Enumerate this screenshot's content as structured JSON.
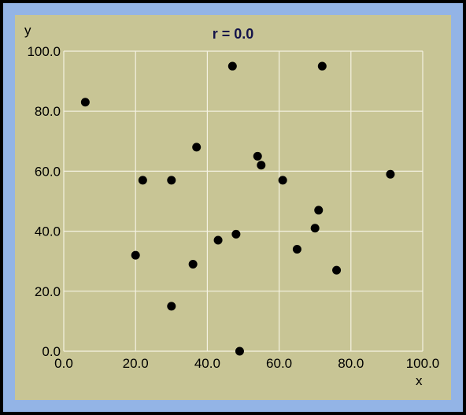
{
  "chart_data": {
    "type": "scatter",
    "title": "r = 0.0",
    "xlabel": "x",
    "ylabel": "y",
    "xlim": [
      0,
      100
    ],
    "ylim": [
      0,
      100
    ],
    "xticks": [
      "0.0",
      "20.0",
      "40.0",
      "60.0",
      "80.0",
      "100.0"
    ],
    "yticks": [
      "0.0",
      "20.0",
      "40.0",
      "60.0",
      "80.0",
      "100.0"
    ],
    "grid": true,
    "series": [
      {
        "points": [
          {
            "x": 6,
            "y": 83
          },
          {
            "x": 47,
            "y": 95
          },
          {
            "x": 72,
            "y": 95
          },
          {
            "x": 37,
            "y": 68
          },
          {
            "x": 54,
            "y": 65
          },
          {
            "x": 55,
            "y": 62
          },
          {
            "x": 22,
            "y": 57
          },
          {
            "x": 30,
            "y": 57
          },
          {
            "x": 61,
            "y": 57
          },
          {
            "x": 91,
            "y": 59
          },
          {
            "x": 71,
            "y": 47
          },
          {
            "x": 70,
            "y": 41
          },
          {
            "x": 48,
            "y": 39
          },
          {
            "x": 43,
            "y": 37
          },
          {
            "x": 65,
            "y": 34
          },
          {
            "x": 20,
            "y": 32
          },
          {
            "x": 36,
            "y": 29
          },
          {
            "x": 76,
            "y": 27
          },
          {
            "x": 30,
            "y": 15
          },
          {
            "x": 49,
            "y": 0
          }
        ]
      }
    ]
  },
  "colors": {
    "applet_border": "#93b4e6",
    "panel_background": "#c8c595",
    "grid": "#f4f2e2",
    "points": "#000000",
    "title": "#14144a"
  }
}
